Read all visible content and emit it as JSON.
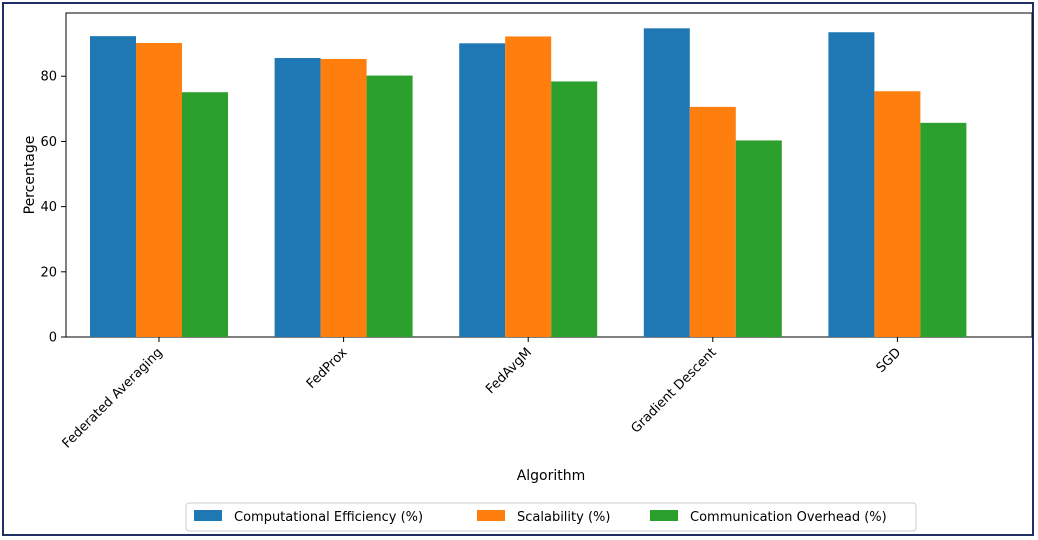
{
  "chart_data": {
    "type": "bar",
    "title": "",
    "xlabel": "Algorithm",
    "ylabel": "Percentage",
    "categories": [
      "Federated Averaging",
      "FedProx",
      "FedAvgM",
      "Gradient Descent",
      "SGD"
    ],
    "series": [
      {
        "name": "Computational Efficiency (%)",
        "color": "#1f77b4",
        "values": [
          92.3,
          85.6,
          90.1,
          94.7,
          93.5
        ]
      },
      {
        "name": "Scalability (%)",
        "color": "#ff7f0e",
        "values": [
          90.2,
          85.3,
          92.2,
          70.6,
          75.4
        ]
      },
      {
        "name": "Communication Overhead (%)",
        "color": "#2ca02c",
        "values": [
          75.1,
          80.2,
          78.4,
          60.3,
          65.7
        ]
      }
    ],
    "yticks": [
      0,
      20,
      40,
      60,
      80
    ],
    "ylim": [
      0,
      99.4
    ],
    "grid": false,
    "legend_placement": "bottom-center"
  }
}
